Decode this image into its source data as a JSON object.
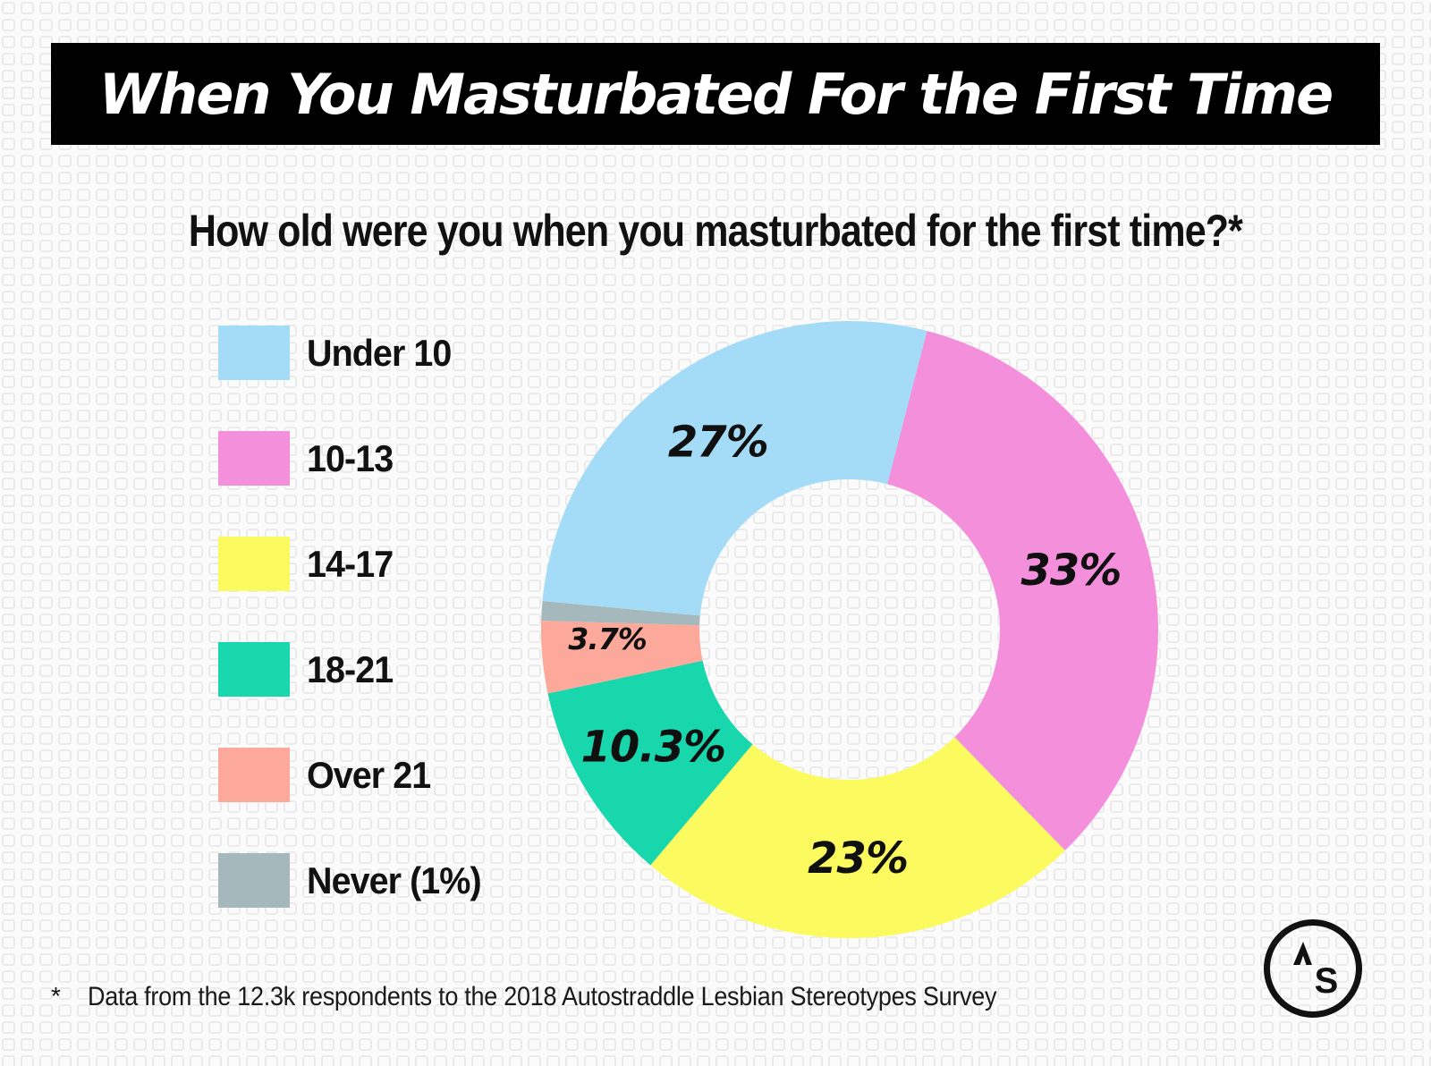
{
  "header": {
    "title": "When You Masturbated For the First Time"
  },
  "question": "How old were you when you masturbated for the first time?*",
  "chart_data": {
    "type": "pie",
    "variant": "donut",
    "title": "When You Masturbated For the First Time",
    "question": "How old were you when you masturbated for the first time?*",
    "unit": "%",
    "segments": [
      {
        "label": "Under 10",
        "value": 27,
        "display": "27%",
        "color": "#A4DCF8"
      },
      {
        "label": "10-13",
        "value": 33,
        "display": "33%",
        "color": "#F48FDB"
      },
      {
        "label": "14-17",
        "value": 23,
        "display": "23%",
        "color": "#FBFA5E"
      },
      {
        "label": "18-21",
        "value": 10.3,
        "display": "10.3%",
        "color": "#19D7AC"
      },
      {
        "label": "Over 21",
        "value": 3.7,
        "display": "3.7%",
        "color": "#FCA99B"
      },
      {
        "label": "Never",
        "value": 1,
        "display": "",
        "color": "#A5B9BC"
      }
    ],
    "legend": [
      {
        "label": "Under 10",
        "color": "#A4DCF8"
      },
      {
        "label": "10-13",
        "color": "#F48FDB"
      },
      {
        "label": "14-17",
        "color": "#FBFA5E"
      },
      {
        "label": "18-21",
        "color": "#19D7AC"
      },
      {
        "label": "Over 21",
        "color": "#FCA99B"
      },
      {
        "label": "Never (1%)",
        "color": "#A5B9BC"
      }
    ],
    "clockwise_order": [
      "10-13",
      "14-17",
      "18-21",
      "Over 21",
      "Never",
      "Under 10"
    ],
    "start_angle_deg": 14.5,
    "legend_position": "left",
    "hole": true
  },
  "footnote": {
    "marker": "*",
    "text": "Data from the 12.3k respondents to the 2018 Autostraddle Lesbian Stereotypes Survey"
  },
  "logo": {
    "letter": "S"
  },
  "colors": {
    "background": "#FBFBFB",
    "pattern": "#E9E9E9",
    "banner": "#000000",
    "text": "#111111"
  }
}
